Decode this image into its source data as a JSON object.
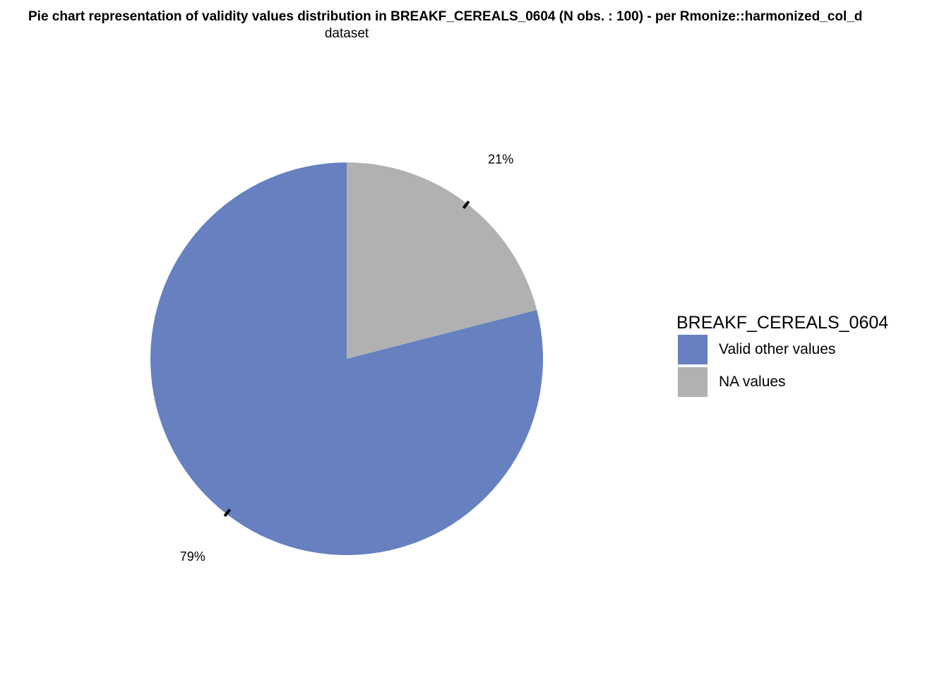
{
  "chart_data": {
    "type": "pie",
    "title": "Pie chart representation of validity values distribution in BREAKF_CEREALS_0604 (N obs. : 100) - per Rmonize::harmonized_col_dataset",
    "title_line1": "Pie chart representation of validity values distribution in BREAKF_CEREALS_0604 (N obs. : 100) - per Rmonize::harmonized_col_d",
    "title_line2": "dataset",
    "categories": [
      "Valid other values",
      "NA values"
    ],
    "values": [
      79,
      21
    ],
    "data_labels": [
      "79%",
      "21%"
    ],
    "colors": [
      "#6680C0",
      "#B0B1B2"
    ],
    "legend": {
      "title": "BREAKF_CEREALS_0604",
      "position": "right",
      "items": [
        {
          "label": "Valid other values",
          "color": "#6680C0"
        },
        {
          "label": "NA values",
          "color": "#B0B1B2"
        }
      ]
    },
    "grid": false
  }
}
